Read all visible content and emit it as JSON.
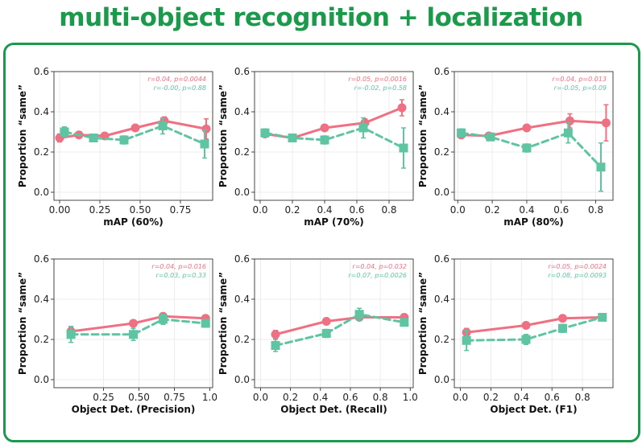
{
  "page": {
    "title": "multi-object recognition + localization",
    "accent_color": "#1b9a4b"
  },
  "colors": {
    "series_pink": "#ef6f83",
    "series_green": "#5fc4a2",
    "grid": "#ececec",
    "axis": "#333333"
  },
  "chart_data": [
    {
      "type": "line",
      "xlabel": "mAP (60%)",
      "ylabel": "Proportion “same”",
      "xlim": [
        -0.035,
        0.95
      ],
      "ylim": [
        -0.04,
        0.6
      ],
      "xticks": [
        0.0,
        0.25,
        0.5,
        0.75
      ],
      "xtick_labels": [
        "0.00",
        "0.25",
        "0.50",
        "0.75"
      ],
      "yticks": [
        0.0,
        0.2,
        0.4,
        0.6
      ],
      "ytick_labels": [
        "0.0",
        "0.2",
        "0.4",
        "0.6"
      ],
      "annotations": [
        "r=0.04, p=0.0044",
        "r=-0.00, p=0.88"
      ],
      "series": [
        {
          "color": "#ef6f83",
          "style": "solid",
          "marker": "circle",
          "x": [
            0.0,
            0.12,
            0.28,
            0.47,
            0.65,
            0.91
          ],
          "y": [
            0.27,
            0.285,
            0.28,
            0.32,
            0.355,
            0.315
          ],
          "err": [
            0.02,
            0.01,
            0.01,
            0.015,
            0.02,
            0.05
          ]
        },
        {
          "color": "#5fc4a2",
          "style": "dashed",
          "marker": "square",
          "x": [
            0.03,
            0.21,
            0.4,
            0.64,
            0.9
          ],
          "y": [
            0.3,
            0.27,
            0.26,
            0.33,
            0.24
          ],
          "err": [
            0.025,
            0.01,
            0.02,
            0.04,
            0.07
          ]
        }
      ]
    },
    {
      "type": "line",
      "xlabel": "mAP (70%)",
      "ylabel": "Proportion “same”",
      "xlim": [
        -0.035,
        0.95
      ],
      "ylim": [
        -0.04,
        0.6
      ],
      "xticks": [
        0.0,
        0.2,
        0.4,
        0.6,
        0.8
      ],
      "xtick_labels": [
        "0.0",
        "0.2",
        "0.4",
        "0.6",
        "0.8"
      ],
      "yticks": [
        0.0,
        0.2,
        0.4,
        0.6
      ],
      "ytick_labels": [
        "0.0",
        "0.2",
        "0.4",
        "0.6"
      ],
      "annotations": [
        "r=0.05, p=0.0016",
        "r=-0.02, p=0.58"
      ],
      "series": [
        {
          "color": "#ef6f83",
          "style": "solid",
          "marker": "circle",
          "x": [
            0.03,
            0.2,
            0.4,
            0.65,
            0.88
          ],
          "y": [
            0.29,
            0.27,
            0.32,
            0.345,
            0.42
          ],
          "err": [
            0.015,
            0.01,
            0.01,
            0.02,
            0.04
          ]
        },
        {
          "color": "#5fc4a2",
          "style": "dashed",
          "marker": "square",
          "x": [
            0.03,
            0.2,
            0.4,
            0.64,
            0.89
          ],
          "y": [
            0.295,
            0.27,
            0.26,
            0.32,
            0.22
          ],
          "err": [
            0.02,
            0.01,
            0.02,
            0.05,
            0.1
          ]
        }
      ]
    },
    {
      "type": "line",
      "xlabel": "mAP (80%)",
      "ylabel": "Proportion “same”",
      "xlim": [
        -0.02,
        0.9
      ],
      "ylim": [
        -0.04,
        0.6
      ],
      "xticks": [
        0.0,
        0.2,
        0.4,
        0.6,
        0.8
      ],
      "xtick_labels": [
        "0.0",
        "0.2",
        "0.4",
        "0.6",
        "0.8"
      ],
      "yticks": [
        0.0,
        0.2,
        0.4,
        0.6
      ],
      "ytick_labels": [
        "0.0",
        "0.2",
        "0.4",
        "0.6"
      ],
      "annotations": [
        "r=0.04, p=0.013",
        "r=-0.05, p=0.09"
      ],
      "series": [
        {
          "color": "#ef6f83",
          "style": "solid",
          "marker": "circle",
          "x": [
            0.02,
            0.18,
            0.4,
            0.65,
            0.86
          ],
          "y": [
            0.285,
            0.28,
            0.32,
            0.355,
            0.345
          ],
          "err": [
            0.01,
            0.01,
            0.01,
            0.035,
            0.09
          ]
        },
        {
          "color": "#5fc4a2",
          "style": "dashed",
          "marker": "square",
          "x": [
            0.02,
            0.19,
            0.4,
            0.64,
            0.83
          ],
          "y": [
            0.295,
            0.275,
            0.22,
            0.295,
            0.125
          ],
          "err": [
            0.02,
            0.01,
            0.02,
            0.05,
            0.12
          ]
        }
      ]
    },
    {
      "type": "line",
      "xlabel": "Object Det. (Precision)",
      "ylabel": "Proportion “same”",
      "xlim": [
        -0.1,
        1.02
      ],
      "ylim": [
        -0.04,
        0.6
      ],
      "xticks": [
        0.25,
        0.5,
        0.75,
        1.0
      ],
      "xtick_labels": [
        "0.25",
        "0.50",
        "0.75",
        "1.0"
      ],
      "yticks": [
        0.0,
        0.2,
        0.4,
        0.6
      ],
      "ytick_labels": [
        "0.0",
        "0.2",
        "0.4",
        "0.6"
      ],
      "annotations": [
        "r=0.04, p=0.016",
        "r=0.03, p=0.33"
      ],
      "series": [
        {
          "color": "#ef6f83",
          "style": "solid",
          "marker": "circle",
          "x": [
            0.02,
            0.46,
            0.67,
            0.97
          ],
          "y": [
            0.24,
            0.28,
            0.315,
            0.305
          ],
          "err": [
            0.02,
            0.015,
            0.015,
            0.01
          ]
        },
        {
          "color": "#5fc4a2",
          "style": "dashed",
          "marker": "square",
          "x": [
            0.02,
            0.46,
            0.67,
            0.97
          ],
          "y": [
            0.225,
            0.225,
            0.3,
            0.28
          ],
          "err": [
            0.04,
            0.03,
            0.025,
            0.015
          ]
        }
      ]
    },
    {
      "type": "line",
      "xlabel": "Object Det. (Recall)",
      "ylabel": "Proportion “same”",
      "xlim": [
        -0.04,
        1.02
      ],
      "ylim": [
        -0.04,
        0.6
      ],
      "xticks": [
        0.0,
        0.2,
        0.4,
        0.6,
        0.8,
        1.0
      ],
      "xtick_labels": [
        "0.0",
        "0.2",
        "0.4",
        "0.6",
        "0.8",
        "1.0"
      ],
      "yticks": [
        0.0,
        0.2,
        0.4,
        0.6
      ],
      "ytick_labels": [
        "0.0",
        "0.2",
        "0.4",
        "0.6"
      ],
      "annotations": [
        "r=0.04, p=0.032",
        "r=0.07, p=0.0026"
      ],
      "series": [
        {
          "color": "#ef6f83",
          "style": "solid",
          "marker": "circle",
          "x": [
            0.1,
            0.44,
            0.66,
            0.96
          ],
          "y": [
            0.225,
            0.29,
            0.31,
            0.31
          ],
          "err": [
            0.02,
            0.01,
            0.01,
            0.01
          ]
        },
        {
          "color": "#5fc4a2",
          "style": "dashed",
          "marker": "square",
          "x": [
            0.1,
            0.44,
            0.66,
            0.96
          ],
          "y": [
            0.17,
            0.23,
            0.325,
            0.285
          ],
          "err": [
            0.03,
            0.02,
            0.03,
            0.015
          ]
        }
      ]
    },
    {
      "type": "line",
      "xlabel": "Object Det. (F1)",
      "ylabel": "Proportion “same”",
      "xlim": [
        -0.04,
        1.0
      ],
      "ylim": [
        -0.04,
        0.6
      ],
      "xticks": [
        0.0,
        0.2,
        0.4,
        0.6,
        0.8
      ],
      "xtick_labels": [
        "0.0",
        "0.2",
        "0.4",
        "0.6",
        "0.8"
      ],
      "yticks": [
        0.0,
        0.2,
        0.4,
        0.6
      ],
      "ytick_labels": [
        "0.0",
        "0.2",
        "0.4",
        "0.6"
      ],
      "annotations": [
        "r=0.05, p=0.0024",
        "r=0.08, p=0.0093"
      ],
      "series": [
        {
          "color": "#ef6f83",
          "style": "solid",
          "marker": "circle",
          "x": [
            0.04,
            0.43,
            0.67,
            0.93
          ],
          "y": [
            0.235,
            0.27,
            0.305,
            0.31
          ],
          "err": [
            0.02,
            0.01,
            0.01,
            0.01
          ]
        },
        {
          "color": "#5fc4a2",
          "style": "dashed",
          "marker": "square",
          "x": [
            0.04,
            0.43,
            0.67,
            0.93
          ],
          "y": [
            0.195,
            0.2,
            0.255,
            0.31
          ],
          "err": [
            0.05,
            0.025,
            0.02,
            0.015
          ]
        }
      ]
    }
  ]
}
